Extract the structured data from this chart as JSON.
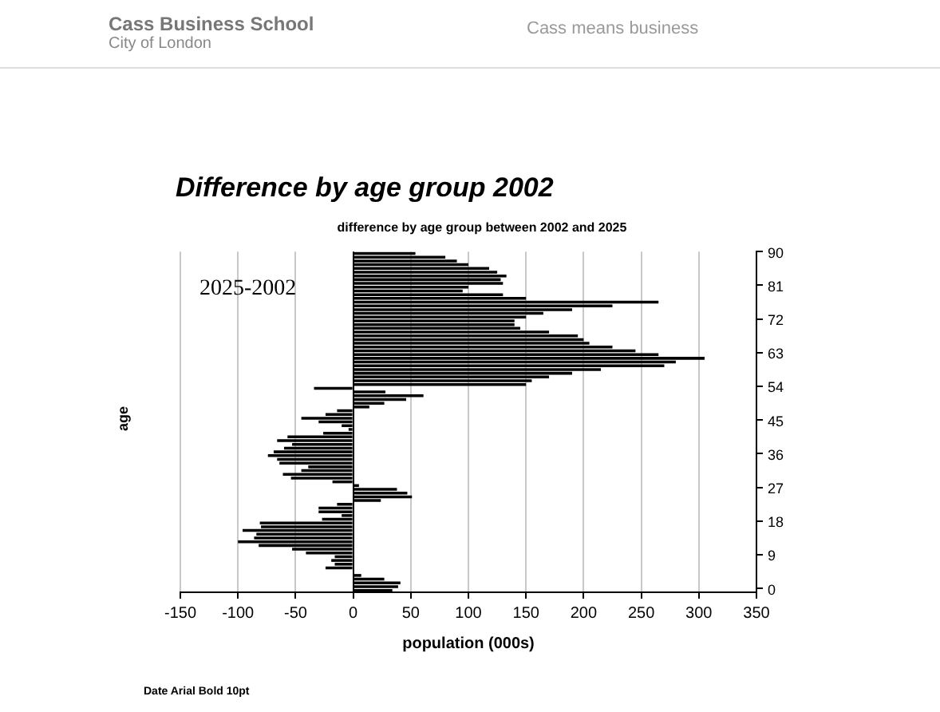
{
  "chart_data": {
    "type": "bar",
    "orientation": "horizontal",
    "title": "Difference by age group 2002",
    "subtitle": "difference by age group between 2002 and 2025",
    "xlabel": "population (000s)",
    "ylabel": "age",
    "annotations": [
      "Cass Business School",
      "City of London",
      "Cass means business",
      "2025-2002",
      "Date Arial Bold 10pt"
    ],
    "categories": [
      "90",
      null,
      null,
      null,
      null,
      null,
      null,
      null,
      null,
      "81",
      null,
      null,
      null,
      null,
      null,
      null,
      null,
      null,
      "72",
      null,
      null,
      null,
      null,
      null,
      null,
      null,
      null,
      "63",
      null,
      null,
      null,
      null,
      null,
      null,
      null,
      null,
      "54",
      null,
      null,
      null,
      null,
      null,
      null,
      null,
      null,
      "45",
      null,
      null,
      null,
      null,
      null,
      null,
      null,
      null,
      "36",
      null,
      null,
      null,
      null,
      null,
      null,
      null,
      null,
      "27",
      null,
      null,
      null,
      null,
      null,
      null,
      null,
      null,
      "18",
      null,
      null,
      null,
      null,
      null,
      null,
      null,
      null,
      "9",
      null,
      null,
      null,
      null,
      null,
      null,
      null,
      null,
      "0"
    ],
    "values": [
      54,
      80,
      90,
      100,
      118,
      125,
      133,
      128,
      130,
      100,
      95,
      130,
      150,
      265,
      225,
      190,
      165,
      150,
      140,
      140,
      145,
      170,
      195,
      200,
      205,
      225,
      245,
      265,
      305,
      280,
      270,
      215,
      190,
      170,
      155,
      150,
      -34,
      28,
      61,
      46,
      27,
      14,
      -14,
      -24,
      -45,
      -30,
      -10,
      -4,
      -26,
      -57,
      -66,
      -53,
      -60,
      -69,
      -74,
      -66,
      -64,
      -39,
      -45,
      -61,
      -54,
      -18,
      5,
      38,
      47,
      51,
      24,
      -14,
      -30,
      -30,
      -10,
      -27,
      -81,
      -80,
      -96,
      -84,
      -86,
      -100,
      -82,
      -53,
      -41,
      -16,
      -19,
      -16,
      -24,
      0,
      7,
      27,
      41,
      39,
      34
    ],
    "color": "#000000",
    "xlim": [
      -150,
      350
    ],
    "xticks": [
      -150,
      -100,
      -50,
      0,
      50,
      100,
      150,
      200,
      250,
      300,
      350
    ],
    "grid": "x",
    "legend": false
  }
}
